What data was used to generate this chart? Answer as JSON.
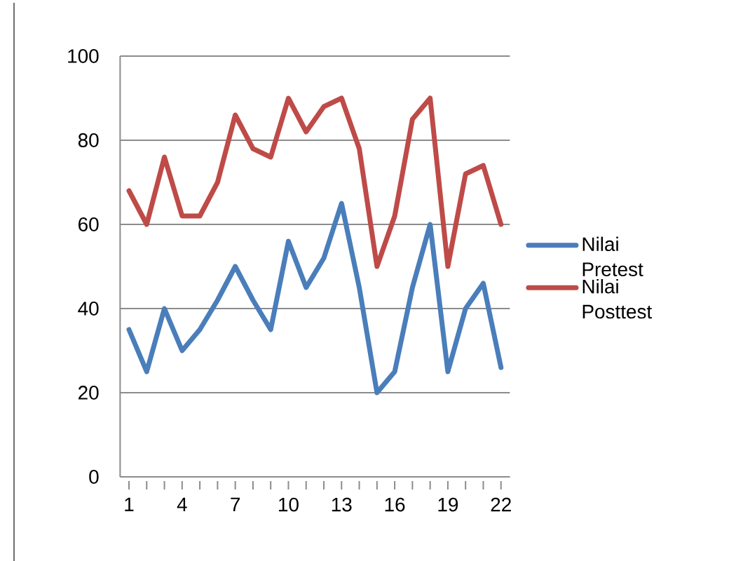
{
  "chart_data": {
    "type": "line",
    "categories": [
      "1",
      null,
      null,
      "4",
      null,
      null,
      "7",
      null,
      null,
      "10",
      null,
      null,
      "13",
      null,
      null,
      "16",
      null,
      null,
      "19",
      null,
      null,
      "22"
    ],
    "series": [
      {
        "name": "Nilai Pretest",
        "color": "#4a7ebb",
        "values": [
          35,
          25,
          40,
          30,
          35,
          42,
          50,
          42,
          35,
          56,
          45,
          52,
          65,
          45,
          20,
          25,
          45,
          60,
          25,
          40,
          46,
          26
        ]
      },
      {
        "name": "Nilai Posttest",
        "color": "#be4b48",
        "values": [
          68,
          60,
          76,
          62,
          62,
          70,
          86,
          78,
          76,
          90,
          82,
          88,
          90,
          78,
          50,
          62,
          85,
          90,
          50,
          72,
          74,
          60
        ]
      }
    ],
    "ylim": [
      0,
      100
    ],
    "yticks": [
      0,
      20,
      40,
      60,
      80,
      100
    ],
    "grid": "y",
    "legend": "right",
    "marker": "none",
    "line_style": "solid"
  }
}
